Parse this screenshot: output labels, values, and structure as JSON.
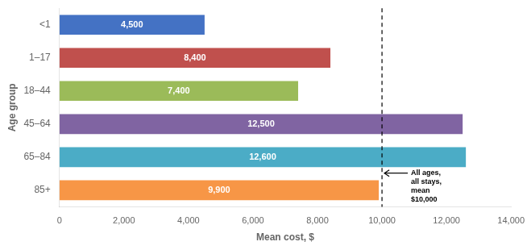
{
  "chart_data": {
    "type": "bar",
    "orientation": "horizontal",
    "categories": [
      "<1",
      "1–17",
      "18–44",
      "45–64",
      "65–84",
      "85+"
    ],
    "values": [
      4500,
      8400,
      7400,
      12500,
      12600,
      9900
    ],
    "value_labels": [
      "4,500",
      "8,400",
      "7,400",
      "12,500",
      "12,600",
      "9,900"
    ],
    "data_labels": true,
    "colors": [
      "#4472C4",
      "#C0504D",
      "#9BBB59",
      "#8064A2",
      "#4BACC6",
      "#F79646"
    ],
    "xlabel": "Mean cost, $",
    "ylabel": "Age group",
    "xlim": [
      0,
      14000
    ],
    "xticks": [
      0,
      {
        "value": 2000,
        "label": "2,000"
      },
      {
        "value": 4000,
        "label": "4,000"
      },
      {
        "value": 6000,
        "label": "6,000"
      },
      {
        "value": 8000,
        "label": "8,000"
      },
      {
        "value": 10000,
        "label": "10,000"
      },
      {
        "value": 12000,
        "label": "12,000"
      },
      {
        "value": 14000,
        "label": "14,000"
      }
    ],
    "annotations": [
      {
        "x": 10000,
        "text": "All ages,\nall stays,\nmean\n$10,000"
      }
    ],
    "grid": false,
    "legend": false
  }
}
